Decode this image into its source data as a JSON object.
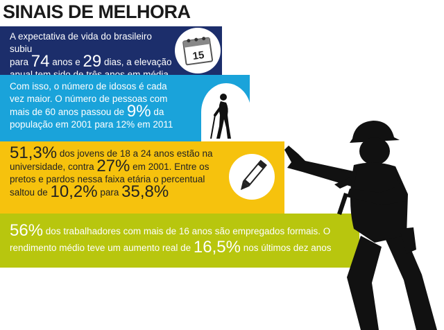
{
  "title": "SINAIS DE MELHORA",
  "band1": {
    "line1": "A expectativa de vida do brasileiro subiu",
    "pre": "para ",
    "n1": "74",
    "mid1": " anos e ",
    "n2": "29",
    "post1": " dias, a elevação",
    "line3": "anual tem sido de três anos em média",
    "calendar_day": "15"
  },
  "band2": {
    "line1": "Com isso, o número de idosos é cada",
    "line2": "vez maior. O número de pessoas com",
    "pre": "mais de 60 anos passou de ",
    "n1": "9%",
    "post": " da",
    "line4": "população em 2001 para 12% em 2011"
  },
  "band3": {
    "n1": "51,3%",
    "post1": " dos jovens de 18 a 24 anos estão na",
    "pre2": "universidade, contra ",
    "n2": "27%",
    "post2": " em 2001. Entre os",
    "line3": "pretos e pardos nessa faixa etária o percentual",
    "pre4": "saltou de ",
    "n3": "10,2%",
    "mid4": " para ",
    "n4": "35,8%"
  },
  "band4": {
    "n1": "56%",
    "post1": " dos trabalhadores com mais de 16 anos são empregados formais. O",
    "pre2": "rendimento médio teve um aumento real de ",
    "n2": "16,5%",
    "post2": " nos últimos dez anos"
  },
  "icons": [
    "calendar-icon",
    "elderly-person-icon",
    "pencil-icon",
    "worker-silhouette"
  ]
}
